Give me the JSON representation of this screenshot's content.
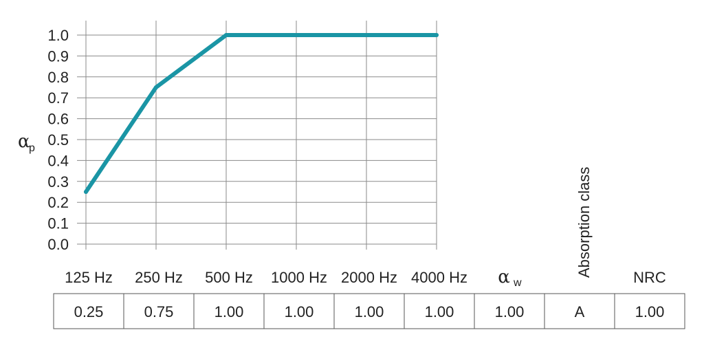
{
  "chart_data": {
    "type": "line",
    "categories": [
      "125 Hz",
      "250 Hz",
      "500 Hz",
      "1000 Hz",
      "2000 Hz",
      "4000 Hz"
    ],
    "values": [
      0.25,
      0.75,
      1.0,
      1.0,
      1.0,
      1.0
    ],
    "ylim": [
      0.0,
      1.0
    ],
    "yticks": [
      "0.0",
      "0.1",
      "0.2",
      "0.3",
      "0.4",
      "0.5",
      "0.6",
      "0.7",
      "0.8",
      "0.9",
      "1.0"
    ],
    "ylabel": "α",
    "ylabel_sub": "p",
    "grid": true,
    "line_color": "#1a95a5"
  },
  "table": {
    "headers": [
      "125 Hz",
      "250 Hz",
      "500 Hz",
      "1000 Hz",
      "2000 Hz",
      "4000 Hz",
      "α",
      "Absorption class",
      "NRC"
    ],
    "alpha_w_sub": "w",
    "values": [
      "0.25",
      "0.75",
      "1.00",
      "1.00",
      "1.00",
      "1.00",
      "1.00",
      "A",
      "1.00"
    ]
  }
}
